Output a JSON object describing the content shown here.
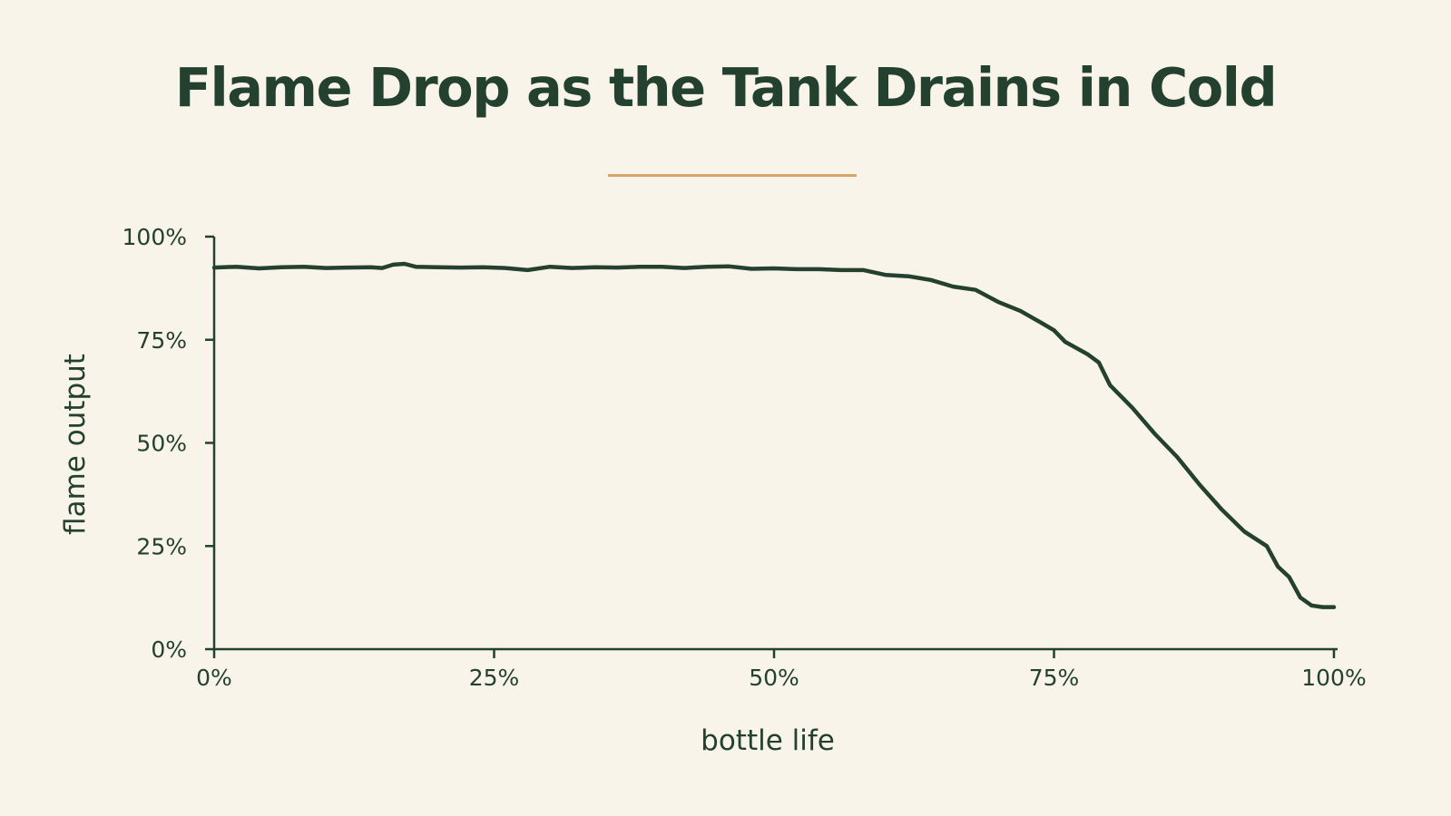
{
  "chart_data": {
    "type": "line",
    "title": "Flame Drop as the Tank Drains in Cold",
    "xlabel": "bottle life",
    "ylabel": "flame output",
    "xlim": [
      0,
      100
    ],
    "ylim": [
      0,
      100
    ],
    "x_ticks": [
      "0%",
      "25%",
      "50%",
      "75%",
      "100%"
    ],
    "y_ticks": [
      "0%",
      "25%",
      "50%",
      "75%",
      "100%"
    ],
    "grid": false,
    "legend": "none",
    "colors": {
      "background": "#f8f4ea",
      "line": "#24412f",
      "axis": "#24412f",
      "title": "#24412f",
      "accent_rule": "#d4a56c"
    },
    "series": [
      {
        "x": [
          0,
          2,
          4,
          6,
          8,
          10,
          12,
          14,
          15,
          16,
          17,
          18,
          20,
          22,
          24,
          26,
          28,
          30,
          32,
          34,
          36,
          38,
          40,
          42,
          44,
          46,
          48,
          50,
          52,
          54,
          56,
          58,
          60,
          62,
          64,
          66,
          68,
          70,
          72,
          74,
          75,
          76,
          78,
          79,
          80,
          82,
          84,
          86,
          88,
          90,
          92,
          94,
          95,
          96,
          97,
          98,
          99,
          100
        ],
        "y": [
          92.5,
          92.7,
          92.3,
          92.6,
          92.7,
          92.4,
          92.5,
          92.6,
          92.4,
          93.2,
          93.4,
          92.7,
          92.6,
          92.5,
          92.6,
          92.4,
          91.9,
          92.7,
          92.4,
          92.6,
          92.5,
          92.7,
          92.7,
          92.4,
          92.7,
          92.8,
          92.2,
          92.3,
          92.1,
          92.1,
          91.9,
          91.9,
          90.7,
          90.4,
          89.5,
          87.9,
          87.1,
          84.2,
          82.0,
          78.9,
          77.3,
          74.5,
          71.5,
          69.5,
          64.0,
          58.5,
          52.2,
          46.6,
          39.9,
          33.8,
          28.5,
          25.0,
          20.0,
          17.5,
          12.5,
          10.6,
          10.2,
          10.2
        ]
      }
    ]
  }
}
